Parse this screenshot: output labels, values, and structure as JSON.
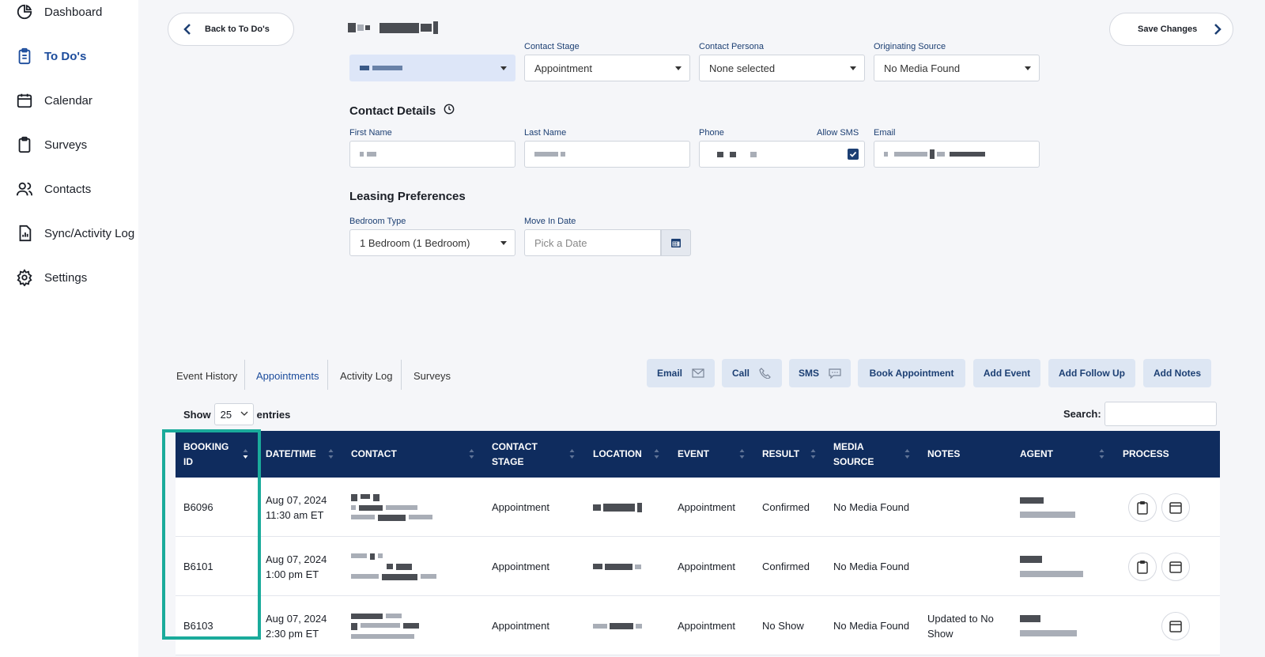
{
  "sidebar": {
    "items": [
      {
        "label": "Dashboard",
        "icon": "pie-chart-icon"
      },
      {
        "label": "To Do's",
        "icon": "clipboard-list-icon",
        "active": true
      },
      {
        "label": "Calendar",
        "icon": "calendar-icon"
      },
      {
        "label": "Surveys",
        "icon": "clipboard-icon"
      },
      {
        "label": "Contacts",
        "icon": "users-icon"
      },
      {
        "label": "Sync/Activity Log",
        "icon": "report-icon"
      },
      {
        "label": "Settings",
        "icon": "gear-icon"
      }
    ]
  },
  "header": {
    "back_label": "Back to To Do's",
    "save_label": "Save Changes"
  },
  "top_fields": {
    "contact_stage_label": "Contact Stage",
    "contact_stage_value": "Appointment",
    "contact_persona_label": "Contact Persona",
    "contact_persona_value": "None selected",
    "originating_source_label": "Originating Source",
    "originating_source_value": "No Media Found"
  },
  "contact_details": {
    "title": "Contact Details",
    "first_name_label": "First Name",
    "last_name_label": "Last Name",
    "phone_label": "Phone",
    "allow_sms_label": "Allow SMS",
    "email_label": "Email"
  },
  "leasing": {
    "title": "Leasing Preferences",
    "bedroom_label": "Bedroom Type",
    "bedroom_value": "1 Bedroom (1 Bedroom)",
    "move_in_label": "Move In Date",
    "move_in_placeholder": "Pick a Date"
  },
  "tabs": [
    {
      "label": "Event History"
    },
    {
      "label": "Appointments",
      "active": true
    },
    {
      "label": "Activity Log"
    },
    {
      "label": "Surveys"
    }
  ],
  "actions": {
    "email": "Email",
    "call": "Call",
    "sms": "SMS",
    "book": "Book Appointment",
    "add_event": "Add Event",
    "add_follow_up": "Add Follow Up",
    "add_notes": "Add Notes"
  },
  "table_controls": {
    "show": "Show",
    "entries_value": "25",
    "entries": "entries",
    "search": "Search:"
  },
  "table": {
    "headers": {
      "booking_1": "BOOKING",
      "booking_2": "ID",
      "datetime": "DATE/TIME",
      "contact": "CONTACT",
      "stage_1": "CONTACT",
      "stage_2": "STAGE",
      "location": "LOCATION",
      "event": "EVENT",
      "result": "RESULT",
      "media_1": "MEDIA",
      "media_2": "SOURCE",
      "notes": "NOTES",
      "agent": "AGENT",
      "process": "PROCESS"
    },
    "rows": [
      {
        "id": "B6096",
        "date": "Aug 07, 2024",
        "time": "11:30 am ET",
        "stage": "Appointment",
        "event": "Appointment",
        "result": "Confirmed",
        "media": "No Media Found",
        "notes_1": "",
        "notes_2": ""
      },
      {
        "id": "B6101",
        "date": "Aug 07, 2024",
        "time": "1:00 pm ET",
        "stage": "Appointment",
        "event": "Appointment",
        "result": "Confirmed",
        "media": "No Media Found",
        "notes_1": "",
        "notes_2": ""
      },
      {
        "id": "B6103",
        "date": "Aug 07, 2024",
        "time": "2:30 pm ET",
        "stage": "Appointment",
        "event": "Appointment",
        "result": "No Show",
        "media": "No Media Found",
        "notes_1": "Updated to No",
        "notes_2": "Show"
      }
    ]
  },
  "colors": {
    "accent": "#1c4c9c",
    "header_bg": "#0f2c5e",
    "highlight": "#1aab9b",
    "action_bg": "#dde6f3"
  }
}
